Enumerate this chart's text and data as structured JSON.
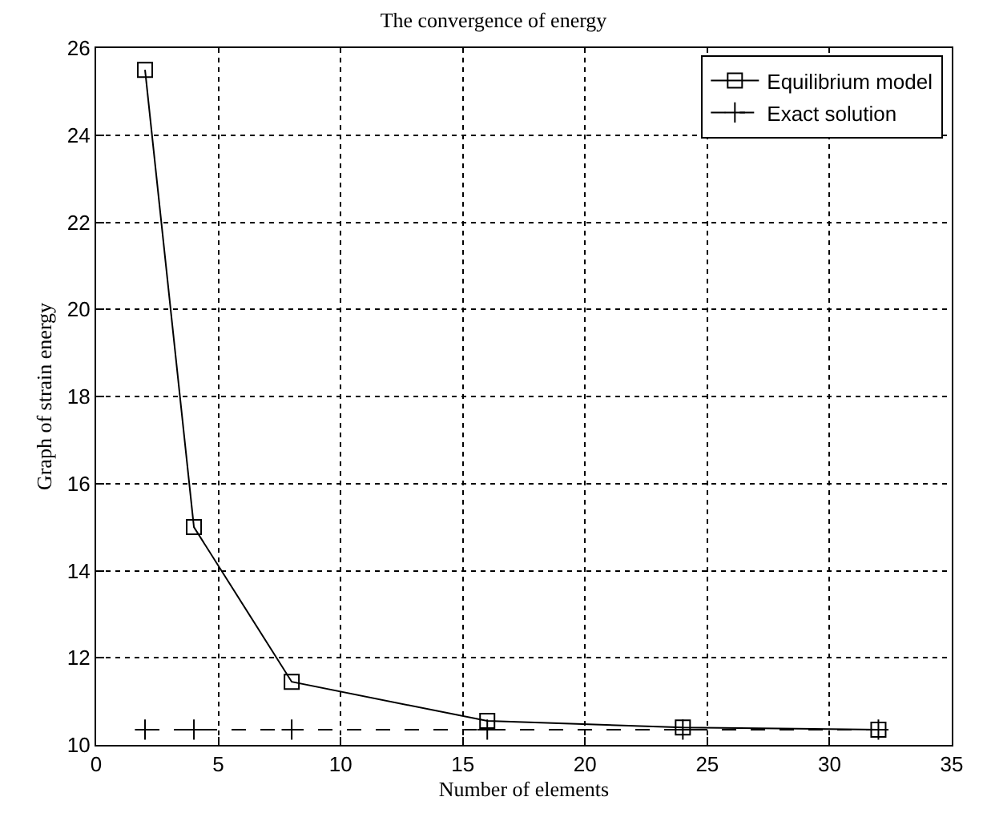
{
  "chart_data": {
    "type": "line",
    "title": "The convergence of energy",
    "xlabel": "Number of elements",
    "ylabel": "Graph of strain energy",
    "x": [
      2,
      4,
      8,
      16,
      24,
      32
    ],
    "series": [
      {
        "name": "Equilibrium model",
        "color": "#000000",
        "values": [
          25.5,
          15.0,
          11.45,
          10.55,
          10.4,
          10.35
        ],
        "marker": "square",
        "line_style": "solid"
      },
      {
        "name": "Exact solution",
        "color": "#000000",
        "values": [
          10.35,
          10.35,
          10.35,
          10.35,
          10.35,
          10.35
        ],
        "marker": "cross",
        "line_style": "dashed"
      }
    ],
    "xlim": [
      0,
      35
    ],
    "xticks": [
      0,
      5,
      10,
      15,
      20,
      25,
      30,
      35
    ],
    "ylim": [
      10,
      26
    ],
    "yticks": [
      10,
      12,
      14,
      16,
      18,
      20,
      22,
      24,
      26
    ],
    "grid": true,
    "legend": "top right"
  }
}
